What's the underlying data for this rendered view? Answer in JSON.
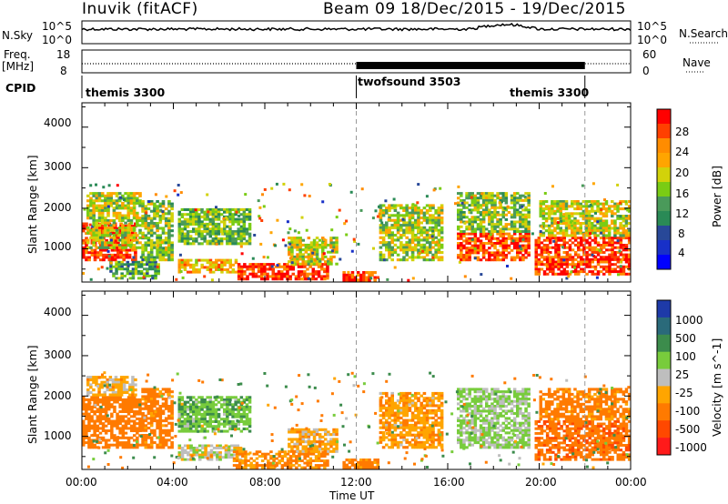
{
  "header": {
    "radar": "Inuvik (fitACF)",
    "beam": "Beam 09",
    "date_range": "18/Dec/2015 - 19/Dec/2015"
  },
  "top_panels": {
    "nsky_label": "N.Sky",
    "nsky_ticks": [
      "10^5",
      "10^0"
    ],
    "nsearch_label": "N.Search",
    "nsearch_ticks": [
      "10^5",
      "10^0"
    ],
    "freq_label_1": "Freq.",
    "freq_label_2": "[MHz]",
    "freq_ticks": [
      "18",
      "8"
    ],
    "nave_label": "Nave",
    "nave_ticks": [
      "60",
      "0"
    ],
    "cpid_label": "CPID",
    "cpid_segments": [
      "themis 3300",
      "twofsound 3503",
      "themis 3300"
    ]
  },
  "axes": {
    "ylabel": "Slant Range [km]",
    "xlabel": "Time UT",
    "yticks": [
      "4000",
      "3000",
      "2000",
      "1000"
    ],
    "xticks": [
      "00:00",
      "04:00",
      "08:00",
      "12:00",
      "16:00",
      "20:00",
      "00:00"
    ]
  },
  "colorbars": {
    "power_label": "Power [dB]",
    "power_ticks": [
      "28",
      "24",
      "20",
      "16",
      "12",
      "8",
      "4"
    ],
    "power_colors": [
      "#ff0000",
      "#ff4000",
      "#ff8c00",
      "#ffa500",
      "#d2d20a",
      "#7acc14",
      "#4a9a5a",
      "#2a8a56",
      "#284898",
      "#1830c8",
      "#0000ff"
    ],
    "velocity_label": "Velocity [m s^-1]",
    "velocity_ticks": [
      "1000",
      "500",
      "100",
      "25",
      "-25",
      "-100",
      "-500",
      "-1000"
    ],
    "velocity_colors": [
      "#1e3aa8",
      "#2a6a7a",
      "#3c8c4c",
      "#78cc3c",
      "#bebebe",
      "#ffa500",
      "#ff7a00",
      "#ff4800",
      "#ff1a1a"
    ]
  },
  "chart_data": [
    {
      "type": "heatmap",
      "title": "",
      "panel": "power",
      "xlabel": "Time UT",
      "ylabel": "Slant Range [km]",
      "xlim": [
        0,
        24
      ],
      "ylim": [
        180,
        4600
      ],
      "colorbar_range": [
        0,
        30
      ],
      "regions": [
        {
          "t0": 0.0,
          "t1": 2.4,
          "r0": 700,
          "r1": 1650,
          "v": 27
        },
        {
          "t0": 0.2,
          "t1": 2.6,
          "r0": 1000,
          "r1": 2400,
          "v": 17
        },
        {
          "t0": 1.2,
          "t1": 3.4,
          "r0": 250,
          "r1": 700,
          "v": 12
        },
        {
          "t0": 2.6,
          "t1": 4.0,
          "r0": 700,
          "r1": 2200,
          "v": 15
        },
        {
          "t0": 4.2,
          "t1": 7.4,
          "r0": 1100,
          "r1": 2000,
          "v": 14
        },
        {
          "t0": 4.2,
          "t1": 6.8,
          "r0": 400,
          "r1": 750,
          "v": 21
        },
        {
          "t0": 6.8,
          "t1": 10.8,
          "r0": 230,
          "r1": 650,
          "v": 27
        },
        {
          "t0": 9.0,
          "t1": 11.2,
          "r0": 600,
          "r1": 1300,
          "v": 18
        },
        {
          "t0": 11.4,
          "t1": 13.0,
          "r0": 200,
          "r1": 450,
          "v": 26
        },
        {
          "t0": 13.0,
          "t1": 15.8,
          "r0": 700,
          "r1": 2100,
          "v": 16
        },
        {
          "t0": 16.4,
          "t1": 19.6,
          "r0": 700,
          "r1": 1400,
          "v": 26
        },
        {
          "t0": 16.4,
          "t1": 19.6,
          "r0": 1400,
          "r1": 2400,
          "v": 15
        },
        {
          "t0": 19.8,
          "t1": 24.0,
          "r0": 350,
          "r1": 1300,
          "v": 27
        },
        {
          "t0": 20.0,
          "t1": 24.0,
          "r0": 1300,
          "r1": 2200,
          "v": 17
        }
      ]
    },
    {
      "type": "heatmap",
      "title": "",
      "panel": "velocity",
      "xlabel": "Time UT",
      "ylabel": "Slant Range [km]",
      "xlim": [
        0,
        24
      ],
      "ylim": [
        180,
        4600
      ],
      "colorbar_range": [
        -1000,
        1000
      ],
      "regions": [
        {
          "t0": 0.0,
          "t1": 2.6,
          "r0": 700,
          "r1": 2000,
          "v": -200
        },
        {
          "t0": 0.2,
          "t1": 2.4,
          "r0": 2000,
          "r1": 2500,
          "v": -50
        },
        {
          "t0": 2.6,
          "t1": 4.0,
          "r0": 700,
          "r1": 2200,
          "v": -150
        },
        {
          "t0": 4.2,
          "t1": 7.4,
          "r0": 1100,
          "r1": 2000,
          "v": 80
        },
        {
          "t0": 4.2,
          "t1": 7.0,
          "r0": 400,
          "r1": 800,
          "v": 0
        },
        {
          "t0": 6.6,
          "t1": 10.8,
          "r0": 200,
          "r1": 650,
          "v": -120
        },
        {
          "t0": 9.0,
          "t1": 11.2,
          "r0": 600,
          "r1": 1200,
          "v": -60
        },
        {
          "t0": 11.4,
          "t1": 13.0,
          "r0": 200,
          "r1": 450,
          "v": -150
        },
        {
          "t0": 13.0,
          "t1": 15.8,
          "r0": 700,
          "r1": 2100,
          "v": -80
        },
        {
          "t0": 16.4,
          "t1": 19.6,
          "r0": 700,
          "r1": 2200,
          "v": 40
        },
        {
          "t0": 19.8,
          "t1": 24.0,
          "r0": 400,
          "r1": 1400,
          "v": -400
        },
        {
          "t0": 20.0,
          "t1": 24.0,
          "r0": 1400,
          "r1": 2200,
          "v": -150
        }
      ]
    }
  ]
}
